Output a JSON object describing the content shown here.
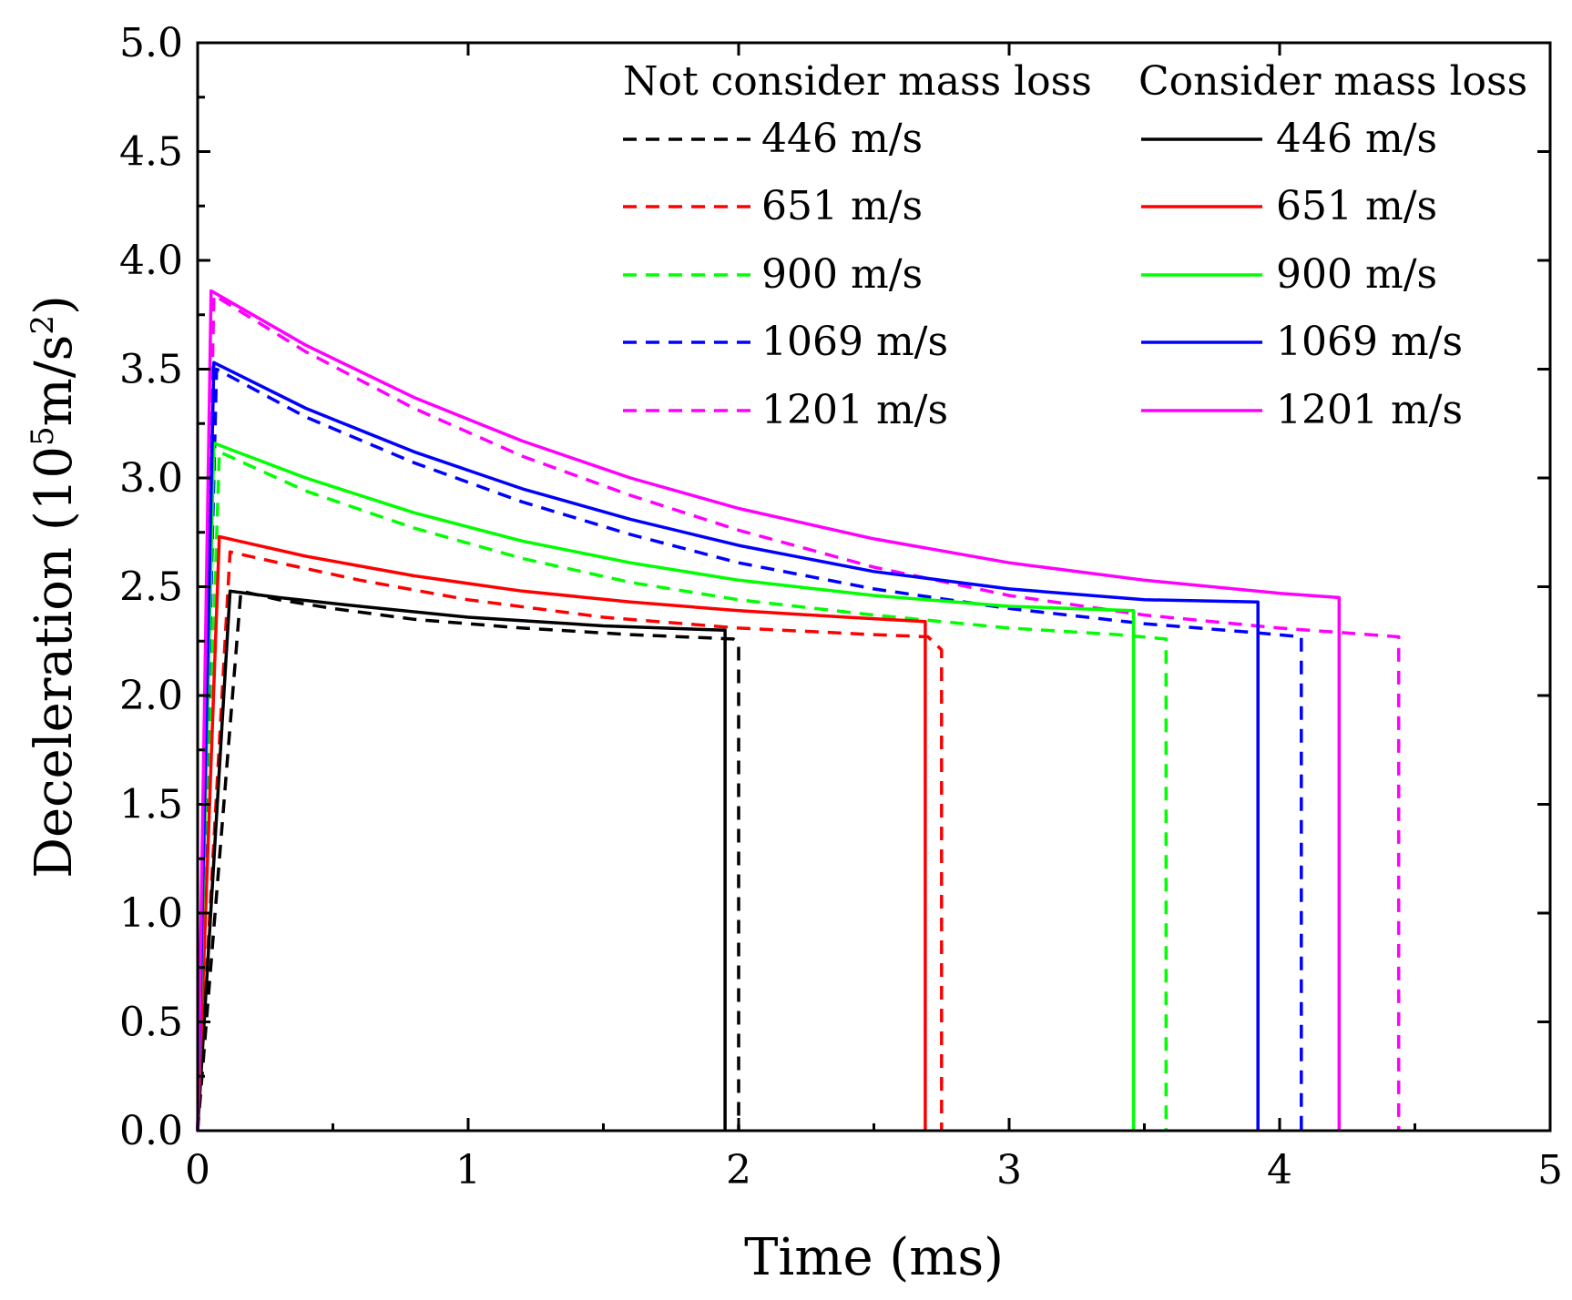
{
  "chart_data": {
    "type": "line",
    "title": "",
    "xlabel": "Time (ms)",
    "ylabel": "Deceleration (10^5m/s^2)",
    "ylabel_parts": {
      "prefix": "Deceleration (10",
      "sup1": "5",
      "middle": "m/s",
      "sup2": "2",
      "suffix": ")"
    },
    "xlim": [
      0,
      5
    ],
    "ylim": [
      0,
      5
    ],
    "x_ticks": [
      {
        "value": 0,
        "label": "0"
      },
      {
        "value": 1,
        "label": "1"
      },
      {
        "value": 2,
        "label": "2"
      },
      {
        "value": 3,
        "label": "3"
      },
      {
        "value": 4,
        "label": "4"
      },
      {
        "value": 5,
        "label": "5"
      }
    ],
    "y_ticks": [
      {
        "value": 0.0,
        "label": "0.0"
      },
      {
        "value": 0.5,
        "label": "0.5"
      },
      {
        "value": 1.0,
        "label": "1.0"
      },
      {
        "value": 1.5,
        "label": "1.5"
      },
      {
        "value": 2.0,
        "label": "2.0"
      },
      {
        "value": 2.5,
        "label": "2.5"
      },
      {
        "value": 3.0,
        "label": "3.0"
      },
      {
        "value": 3.5,
        "label": "3.5"
      },
      {
        "value": 4.0,
        "label": "4.0"
      },
      {
        "value": 4.5,
        "label": "4.5"
      },
      {
        "value": 5.0,
        "label": "5.0"
      }
    ],
    "x_minor_step": 0.5,
    "y_minor_step": 0.25,
    "grid": false,
    "legend": {
      "placement": "top-right",
      "groups": [
        {
          "title": "Not consider mass loss",
          "style": "dashed",
          "series_names": [
            "446 m/s",
            "651 m/s",
            "900 m/s",
            "1069 m/s",
            "1201 m/s"
          ]
        },
        {
          "title": "Consider mass loss",
          "style": "solid",
          "series_names": [
            "446 m/s",
            "651 m/s",
            "900 m/s",
            "1069 m/s",
            "1201 m/s"
          ]
        }
      ]
    },
    "series": [
      {
        "name": "446 m/s",
        "group": "Not consider mass loss",
        "style": "dashed",
        "color": "#000000",
        "x": [
          0,
          0.16,
          0.3,
          0.5,
          0.8,
          1.2,
          1.6,
          1.98,
          2.0,
          2.0
        ],
        "y": [
          0,
          2.48,
          2.44,
          2.4,
          2.35,
          2.31,
          2.28,
          2.26,
          2.24,
          0
        ]
      },
      {
        "name": "651 m/s",
        "group": "Not consider mass loss",
        "style": "dashed",
        "color": "#ff0000",
        "x": [
          0,
          0.12,
          0.3,
          0.6,
          1.0,
          1.5,
          2.0,
          2.5,
          2.7,
          2.75,
          2.75
        ],
        "y": [
          0,
          2.66,
          2.61,
          2.53,
          2.44,
          2.36,
          2.31,
          2.28,
          2.27,
          2.21,
          0
        ]
      },
      {
        "name": "900 m/s",
        "group": "Not consider mass loss",
        "style": "dashed",
        "color": "#00ff00",
        "x": [
          0,
          0.08,
          0.4,
          0.8,
          1.2,
          1.6,
          2.0,
          2.5,
          3.0,
          3.4,
          3.58,
          3.58
        ],
        "y": [
          0,
          3.12,
          2.94,
          2.77,
          2.63,
          2.52,
          2.44,
          2.37,
          2.31,
          2.28,
          2.26,
          0
        ]
      },
      {
        "name": "1069 m/s",
        "group": "Not consider mass loss",
        "style": "dashed",
        "color": "#0000ff",
        "x": [
          0,
          0.07,
          0.4,
          0.8,
          1.2,
          1.6,
          2.0,
          2.5,
          3.0,
          3.5,
          3.9,
          4.08,
          4.08
        ],
        "y": [
          0,
          3.5,
          3.28,
          3.07,
          2.89,
          2.74,
          2.61,
          2.49,
          2.4,
          2.33,
          2.29,
          2.27,
          0
        ]
      },
      {
        "name": "1201 m/s",
        "group": "Not consider mass loss",
        "style": "dashed",
        "color": "#ff00ff",
        "x": [
          0,
          0.06,
          0.4,
          0.8,
          1.2,
          1.6,
          2.0,
          2.5,
          3.0,
          3.5,
          4.0,
          4.44,
          4.44
        ],
        "y": [
          0,
          3.84,
          3.58,
          3.32,
          3.1,
          2.92,
          2.76,
          2.59,
          2.46,
          2.37,
          2.31,
          2.27,
          0
        ]
      },
      {
        "name": "446 m/s",
        "group": "Consider mass loss",
        "style": "solid",
        "color": "#000000",
        "x": [
          0,
          0.12,
          0.3,
          0.6,
          1.0,
          1.5,
          1.95,
          1.95
        ],
        "y": [
          0,
          2.48,
          2.45,
          2.41,
          2.36,
          2.32,
          2.3,
          0
        ]
      },
      {
        "name": "651 m/s",
        "group": "Consider mass loss",
        "style": "solid",
        "color": "#ff0000",
        "x": [
          0,
          0.08,
          0.4,
          0.8,
          1.2,
          1.6,
          2.0,
          2.4,
          2.69,
          2.69
        ],
        "y": [
          0,
          2.73,
          2.64,
          2.55,
          2.48,
          2.43,
          2.39,
          2.36,
          2.34,
          0
        ]
      },
      {
        "name": "900 m/s",
        "group": "Consider mass loss",
        "style": "solid",
        "color": "#00ff00",
        "x": [
          0,
          0.06,
          0.4,
          0.8,
          1.2,
          1.6,
          2.0,
          2.5,
          3.0,
          3.46,
          3.46
        ],
        "y": [
          0,
          3.16,
          3.0,
          2.84,
          2.71,
          2.61,
          2.53,
          2.46,
          2.41,
          2.39,
          0
        ]
      },
      {
        "name": "1069 m/s",
        "group": "Consider mass loss",
        "style": "solid",
        "color": "#0000ff",
        "x": [
          0,
          0.06,
          0.4,
          0.8,
          1.2,
          1.6,
          2.0,
          2.5,
          3.0,
          3.5,
          3.92,
          3.92
        ],
        "y": [
          0,
          3.53,
          3.32,
          3.12,
          2.95,
          2.81,
          2.69,
          2.57,
          2.49,
          2.44,
          2.43,
          0
        ]
      },
      {
        "name": "1201 m/s",
        "group": "Consider mass loss",
        "style": "solid",
        "color": "#ff00ff",
        "x": [
          0,
          0.05,
          0.4,
          0.8,
          1.2,
          1.6,
          2.0,
          2.5,
          3.0,
          3.5,
          4.0,
          4.22,
          4.22
        ],
        "y": [
          0,
          3.86,
          3.61,
          3.37,
          3.17,
          3.0,
          2.86,
          2.72,
          2.61,
          2.53,
          2.47,
          2.45,
          0
        ]
      }
    ]
  }
}
